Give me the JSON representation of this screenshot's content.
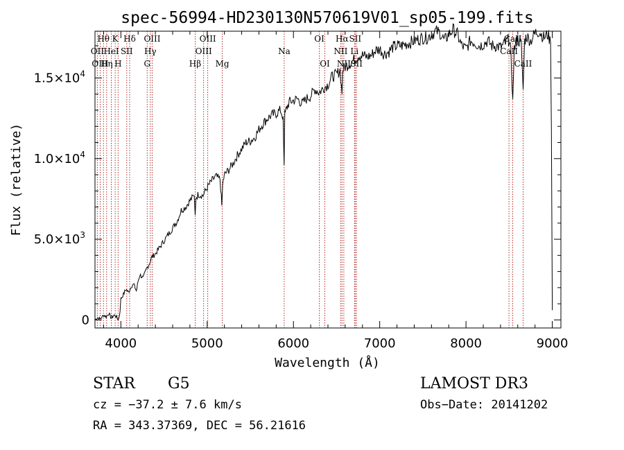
{
  "chart_data": {
    "type": "line",
    "title": "spec-56994-HD230130N570619V01_sp05-199.fits",
    "xlabel": "Wavelength (Å)",
    "ylabel": "Flux (relative)",
    "xlim": [
      3700,
      9100
    ],
    "ylim": [
      -500,
      17900
    ],
    "x_ticks": [
      4000,
      5000,
      6000,
      7000,
      8000,
      9000
    ],
    "x_tick_labels": [
      "4000",
      "5000",
      "6000",
      "7000",
      "8000",
      "9000"
    ],
    "y_ticks": [
      0,
      5000,
      10000,
      15000
    ],
    "y_tick_labels": [
      {
        "base": "0",
        "exp": ""
      },
      {
        "base": "5.0×10",
        "exp": "3"
      },
      {
        "base": "1.0×10",
        "exp": "4"
      },
      {
        "base": "1.5×10",
        "exp": "4"
      }
    ],
    "series": [
      {
        "name": "spectrum",
        "x": [
          3700,
          3730,
          3760,
          3800,
          3830,
          3860,
          3890,
          3920,
          3950,
          3970,
          3990,
          4000,
          4030,
          4060,
          4090,
          4120,
          4150,
          4180,
          4200,
          4220,
          4260,
          4300,
          4330,
          4360,
          4400,
          4450,
          4500,
          4550,
          4600,
          4650,
          4700,
          4750,
          4800,
          4850,
          4861,
          4870,
          4900,
          4950,
          5000,
          5050,
          5100,
          5150,
          5170,
          5180,
          5200,
          5250,
          5300,
          5350,
          5400,
          5450,
          5500,
          5550,
          5600,
          5650,
          5700,
          5750,
          5800,
          5850,
          5880,
          5892,
          5900,
          5920,
          5950,
          6000,
          6050,
          6100,
          6150,
          6200,
          6250,
          6300,
          6350,
          6400,
          6450,
          6500,
          6540,
          6563,
          6570,
          6600,
          6650,
          6700,
          6750,
          6800,
          6850,
          6900,
          6950,
          7000,
          7050,
          7100,
          7150,
          7200,
          7250,
          7300,
          7350,
          7400,
          7450,
          7500,
          7550,
          7600,
          7650,
          7700,
          7750,
          7800,
          7850,
          7900,
          7950,
          8000,
          8050,
          8100,
          8150,
          8200,
          8250,
          8300,
          8350,
          8400,
          8450,
          8480,
          8500,
          8520,
          8542,
          8560,
          8580,
          8600,
          8640,
          8662,
          8680,
          8700,
          8750,
          8800,
          8850,
          8900,
          8950,
          8980,
          8990,
          9000
        ],
        "y": [
          0,
          150,
          50,
          300,
          200,
          400,
          100,
          300,
          200,
          0,
          500,
          1300,
          1600,
          1900,
          1700,
          2100,
          2200,
          1800,
          2400,
          2800,
          2600,
          3200,
          3500,
          3900,
          4100,
          4500,
          4900,
          5300,
          5700,
          6100,
          6800,
          7000,
          7400,
          7700,
          6500,
          7600,
          7800,
          7700,
          8200,
          8600,
          8900,
          8700,
          7100,
          8400,
          9000,
          9300,
          9700,
          10200,
          10600,
          11000,
          11100,
          11300,
          11800,
          12200,
          12500,
          12700,
          12800,
          13000,
          12600,
          9600,
          12700,
          13100,
          13500,
          13600,
          13700,
          13400,
          13700,
          13900,
          14300,
          14100,
          14400,
          14600,
          15100,
          15200,
          15500,
          14000,
          15500,
          15700,
          15900,
          16100,
          16400,
          16400,
          16300,
          16400,
          16700,
          16800,
          16500,
          16600,
          16900,
          17000,
          17000,
          17100,
          17200,
          17300,
          17400,
          17500,
          17500,
          17700,
          17900,
          17800,
          17300,
          17700,
          18000,
          17700,
          17000,
          16800,
          17300,
          17200,
          17000,
          17100,
          17300,
          17000,
          17000,
          16900,
          17100,
          17300,
          17400,
          16500,
          13700,
          16800,
          17200,
          17400,
          17100,
          14300,
          17300,
          17600,
          17300,
          17800,
          17900,
          17500,
          17700,
          17200,
          11800,
          600
        ]
      }
    ],
    "line_labels": [
      {
        "text": "Hθ",
        "wave": 3798,
        "row": 1
      },
      {
        "text": "OII",
        "wave": 3727,
        "row": 2
      },
      {
        "text": "OIII",
        "wave": 3760,
        "row": 3
      },
      {
        "text": "K",
        "wave": 3934,
        "row": 1
      },
      {
        "text": "HeI",
        "wave": 3889,
        "row": 2
      },
      {
        "text": "Hη",
        "wave": 3835,
        "row": 3
      },
      {
        "text": "SII",
        "wave": 4068,
        "row": 2
      },
      {
        "text": "H",
        "wave": 3968,
        "row": 3
      },
      {
        "text": "Hδ",
        "wave": 4102,
        "row": 1
      },
      {
        "text": "OIII",
        "wave": 4363,
        "row": 1
      },
      {
        "text": "Hγ",
        "wave": 4341,
        "row": 2
      },
      {
        "text": "G",
        "wave": 4305,
        "row": 3
      },
      {
        "text": "OIII",
        "wave": 5007,
        "row": 1
      },
      {
        "text": "OIII",
        "wave": 4959,
        "row": 2
      },
      {
        "text": "Hβ",
        "wave": 4861,
        "row": 3
      },
      {
        "text": "Mg",
        "wave": 5175,
        "row": 3
      },
      {
        "text": "Na",
        "wave": 5893,
        "row": 2
      },
      {
        "text": "OI",
        "wave": 6300,
        "row": 1
      },
      {
        "text": "OI",
        "wave": 6364,
        "row": 3
      },
      {
        "text": "Hα",
        "wave": 6563,
        "row": 1
      },
      {
        "text": "SII",
        "wave": 6716,
        "row": 1
      },
      {
        "text": "NII",
        "wave": 6548,
        "row": 2
      },
      {
        "text": "Li",
        "wave": 6708,
        "row": 2
      },
      {
        "text": "NII",
        "wave": 6584,
        "row": 3
      },
      {
        "text": "SII",
        "wave": 6731,
        "row": 3
      },
      {
        "text": "CaII",
        "wave": 8542,
        "row": 1
      },
      {
        "text": "CaII",
        "wave": 8498,
        "row": 2
      },
      {
        "text": "CaII",
        "wave": 8662,
        "row": 3
      }
    ],
    "vertical_lines": [
      3727,
      3760,
      3798,
      3835,
      3889,
      3934,
      3968,
      4068,
      4102,
      4305,
      4341,
      4363,
      4861,
      4959,
      5007,
      5175,
      5893,
      6300,
      6364,
      6548,
      6563,
      6584,
      6708,
      6716,
      6731,
      8498,
      8542,
      8662
    ]
  },
  "info": {
    "object_class": "STAR",
    "subclass": "G5",
    "cz": "cz = −37.2 ± 7.6 km/s",
    "coords": "RA = 343.37369, DEC =  56.21616",
    "survey": "LAMOST DR3",
    "obs_date": "Obs−Date: 20141202"
  },
  "colors": {
    "spectrum": "#000000",
    "line_markers": "#aa1111",
    "axes": "#000000"
  }
}
